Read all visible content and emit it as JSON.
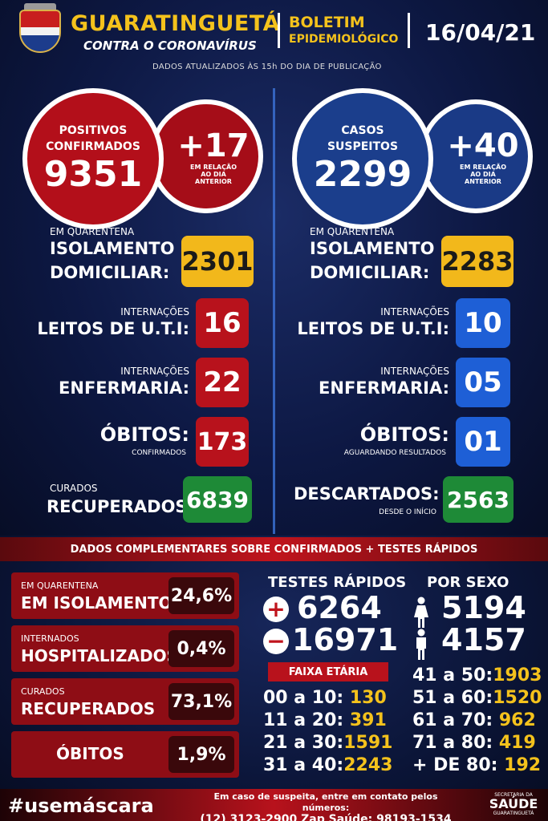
{
  "header": {
    "city": "GUARATINGUETÁ",
    "tagline": "CONTRA O CORONAVÍRUS",
    "boletim_line1": "BOLETIM",
    "boletim_line2": "EPIDEMIOLÓGICO",
    "date": "16/04/21",
    "update_note": "DADOS ATUALIZADOS ÀS 15h DO DIA DE PUBLICAÇÃO"
  },
  "left": {
    "circle_label1": "POSITIVOS",
    "circle_label2": "CONFIRMADOS",
    "circle_value": "9351",
    "delta_value": "+17",
    "delta_note1": "EM RELAÇÃO",
    "delta_note2": "AO DIA",
    "delta_note3": "ANTERIOR",
    "isolamento_small": "EM QUARENTENA",
    "isolamento_l1": "ISOLAMENTO",
    "isolamento_l2": "DOMICILIAR:",
    "isolamento_value": "2301",
    "uti_small": "INTERNAÇÕES",
    "uti_big": "LEITOS DE U.T.I:",
    "uti_value": "16",
    "enf_small": "INTERNAÇÕES",
    "enf_big": "ENFERMARIA:",
    "enf_value": "22",
    "obitos_big": "ÓBITOS:",
    "obitos_small": "CONFIRMADOS",
    "obitos_value": "173",
    "curados_small": "CURADOS",
    "curados_big": "RECUPERADOS:",
    "curados_value": "6839"
  },
  "right": {
    "circle_label1": "CASOS",
    "circle_label2": "SUSPEITOS",
    "circle_value": "2299",
    "delta_value": "+40",
    "delta_note1": "EM RELAÇÃO",
    "delta_note2": "AO DIA",
    "delta_note3": "ANTERIOR",
    "isolamento_small": "EM QUARENTENA",
    "isolamento_l1": "ISOLAMENTO",
    "isolamento_l2": "DOMICILIAR:",
    "isolamento_value": "2283",
    "uti_small": "INTERNAÇÕES",
    "uti_big": "LEITOS DE U.T.I:",
    "uti_value": "10",
    "enf_small": "INTERNAÇÕES",
    "enf_big": "ENFERMARIA:",
    "enf_value": "05",
    "obitos_big": "ÓBITOS:",
    "obitos_small": "AGUARDANDO RESULTADOS",
    "obitos_value": "01",
    "descartados_big": "DESCARTADOS:",
    "descartados_small": "DESDE O INÍCIO",
    "descartados_value": "2563"
  },
  "complement": {
    "banner": "DADOS COMPLEMENTARES SOBRE CONFIRMADOS + TESTES RÁPIDOS",
    "rows": [
      {
        "l1": "EM QUARENTENA",
        "l2": "EM ISOLAMENTO",
        "value": "24,6%"
      },
      {
        "l1": "INTERNADOS",
        "l2": "HOSPITALIZADOS",
        "value": "0,4%"
      },
      {
        "l1": "CURADOS",
        "l2": "RECUPERADOS",
        "value": "73,1%"
      },
      {
        "l1": "",
        "l2": "ÓBITOS",
        "value": "1,9%"
      }
    ],
    "testes_title": "TESTES RÁPIDOS",
    "testes_pos": "6264",
    "testes_neg": "16971",
    "sexo_title": "POR SEXO",
    "sexo_f": "5194",
    "sexo_m": "4157",
    "faixa_title": "FAIXA ETÁRIA",
    "ages_left": [
      {
        "range": "00 a 10:",
        "value": "130"
      },
      {
        "range": "11 a 20:",
        "value": "391"
      },
      {
        "range": "21 a 30:",
        "value": "1591"
      },
      {
        "range": "31 a 40:",
        "value": "2243"
      }
    ],
    "ages_right": [
      {
        "range": "41 a 50:",
        "value": "1903"
      },
      {
        "range": "51 a 60:",
        "value": "1520"
      },
      {
        "range": "61 a 70:",
        "value": "962"
      },
      {
        "range": "71 a 80:",
        "value": "419"
      },
      {
        "range": "+ DE 80:",
        "value": "192"
      }
    ]
  },
  "footer": {
    "hashtag": "#usemáscara",
    "contact_line1": "Em caso de suspeita, entre em contato pelos números:",
    "contact_line2": "(12) 3123-2900 Zap Saúde: 98193-1534",
    "secretaria_a": "SECRETARIA DA",
    "secretaria_b": "SAÚDE",
    "secretaria_c": "GUARATINGUETÁ"
  },
  "colors": {
    "accent_yellow": "#f2b81b",
    "confirmed_red": "#b30f1a",
    "suspect_blue": "#1b3e8c",
    "recovered_green": "#1e8a37"
  }
}
